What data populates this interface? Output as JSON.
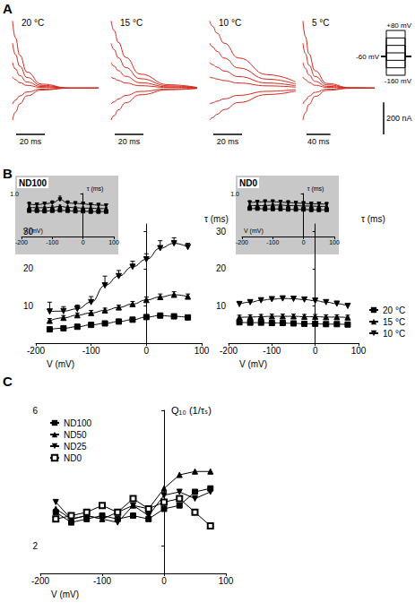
{
  "chart_data": [
    {
      "type": "line",
      "panel": "A",
      "title": "20 °C",
      "tick_labels": false,
      "color": "#d42a1e",
      "line_style": "smooth",
      "x": [
        0,
        2,
        5,
        10,
        20,
        40,
        60
      ],
      "xlim": [
        0,
        60
      ],
      "ylim": [
        -250,
        450
      ],
      "series": [
        {
          "values": [
            420,
            315,
            206,
            101,
            25,
            0,
            0
          ]
        },
        {
          "values": [
            280,
            210,
            137,
            67,
            17,
            0,
            0
          ]
        },
        {
          "values": [
            160,
            120,
            78,
            38,
            10,
            0,
            0
          ]
        },
        {
          "values": [
            70,
            53,
            34,
            17,
            4,
            0,
            0
          ]
        },
        {
          "values": [
            -100,
            -75,
            -49,
            -24,
            -6,
            0,
            0
          ]
        },
        {
          "values": [
            -200,
            -150,
            -98,
            -48,
            -12,
            0,
            0
          ]
        }
      ],
      "scale_bars": {
        "x": {
          "value": 20,
          "label": "20 ms"
        }
      }
    },
    {
      "type": "line",
      "panel": "A",
      "title": "15 °C",
      "tick_labels": false,
      "color": "#d42a1e",
      "line_style": "smooth",
      "x": [
        0,
        2,
        5,
        10,
        20,
        40,
        60
      ],
      "xlim": [
        0,
        60
      ],
      "ylim": [
        -250,
        450
      ],
      "series": [
        {
          "values": [
            420,
            361,
            286,
            193,
            88,
            21,
            4
          ]
        },
        {
          "values": [
            280,
            241,
            190,
            129,
            59,
            14,
            3
          ]
        },
        {
          "values": [
            160,
            138,
            109,
            74,
            34,
            8,
            2
          ]
        },
        {
          "values": [
            70,
            60,
            48,
            32,
            15,
            4,
            1
          ]
        },
        {
          "values": [
            -100,
            -86,
            -68,
            -46,
            -21,
            -5,
            -1
          ]
        },
        {
          "values": [
            -200,
            -172,
            -136,
            -92,
            -42,
            -10,
            -2
          ]
        }
      ],
      "scale_bars": {
        "x": {
          "value": 20,
          "label": "20 ms"
        }
      }
    },
    {
      "type": "line",
      "panel": "A",
      "title": "10 °C",
      "tick_labels": false,
      "color": "#d42a1e",
      "line_style": "smooth",
      "x": [
        0,
        2,
        5,
        10,
        20,
        40,
        60
      ],
      "xlim": [
        0,
        60
      ],
      "ylim": [
        -250,
        450
      ],
      "series": [
        {
          "values": [
            420,
            386,
            344,
            281,
            189,
            84,
            38
          ]
        },
        {
          "values": [
            280,
            258,
            230,
            188,
            126,
            56,
            25
          ]
        },
        {
          "values": [
            160,
            147,
            131,
            107,
            72,
            32,
            14
          ]
        },
        {
          "values": [
            70,
            64,
            57,
            47,
            32,
            14,
            6
          ]
        },
        {
          "values": [
            -100,
            -92,
            -82,
            -67,
            -45,
            -20,
            -9
          ]
        },
        {
          "values": [
            -200,
            -184,
            -164,
            -134,
            -90,
            -40,
            -18
          ]
        }
      ],
      "scale_bars": {
        "x": {
          "value": 20,
          "label": "20 ms"
        }
      }
    },
    {
      "type": "line",
      "panel": "A",
      "title": "5 °C",
      "tick_labels": false,
      "color": "#d42a1e",
      "line_style": "smooth",
      "x": [
        0,
        4,
        10,
        20,
        40,
        80,
        120
      ],
      "xlim": [
        0,
        120
      ],
      "ylim": [
        -250,
        450
      ],
      "series": [
        {
          "values": [
            420,
            323,
            214,
            109,
            29,
            2,
            0
          ]
        },
        {
          "values": [
            280,
            216,
            143,
            73,
            20,
            1,
            0
          ]
        },
        {
          "values": [
            160,
            123,
            82,
            42,
            11,
            1,
            0
          ]
        },
        {
          "values": [
            70,
            54,
            36,
            18,
            5,
            0,
            0
          ]
        },
        {
          "values": [
            -100,
            -77,
            -51,
            -26,
            -7,
            0,
            0
          ]
        },
        {
          "values": [
            -200,
            -154,
            -102,
            -52,
            -14,
            -1,
            0
          ]
        }
      ],
      "scale_bars": {
        "x": {
          "value": 40,
          "label": "40 ms"
        },
        "y": {
          "value": 200,
          "label": "200 nA"
        }
      }
    },
    {
      "type": "protocol",
      "panel": "A",
      "levels": [
        80,
        40,
        0,
        -40,
        -80,
        -120,
        -160
      ],
      "holding": -60,
      "yticks": [
        {
          "value": 80,
          "label": "+80 mV"
        },
        {
          "value": -60,
          "label": "-60 mV"
        },
        {
          "value": -160,
          "label": "-160 mV"
        }
      ]
    },
    {
      "type": "line",
      "panel": "B",
      "line_style": "smooth",
      "color": "#000000",
      "xlabel": "V (mV)",
      "ylabel": "τ (ms)",
      "x": [
        -175,
        -150,
        -125,
        -100,
        -75,
        -50,
        -25,
        0,
        25,
        50,
        75
      ],
      "xlim": [
        -200,
        100
      ],
      "xticks": [
        -200,
        -100,
        0,
        100
      ],
      "ylim": [
        0,
        32
      ],
      "yticks": [
        10,
        20,
        30
      ],
      "series": [
        {
          "name": "20 °C",
          "marker": "square",
          "values": [
            3.7,
            4.0,
            4.4,
            4.9,
            5.3,
            5.8,
            6.3,
            7.0,
            7.4,
            7.2,
            6.9
          ],
          "errors": [
            0.5,
            0.4,
            0.4,
            0.4,
            0.4,
            0.4,
            0.4,
            0.5,
            0.5,
            0.4,
            0.4
          ]
        },
        {
          "name": "15 °C",
          "marker": "triangle",
          "values": [
            6.0,
            6.8,
            7.5,
            8.1,
            8.8,
            9.6,
            10.5,
            11.6,
            12.4,
            13.0,
            12.5
          ],
          "errors": [
            0.6,
            0.6,
            0.6,
            0.7,
            0.6,
            0.6,
            0.7,
            0.8,
            0.8,
            0.8,
            0.7
          ]
        },
        {
          "name": "10 °C",
          "marker": "triangle-down",
          "values": [
            8.5,
            8.6,
            9.2,
            11.0,
            15.5,
            18.0,
            20.5,
            22.5,
            25.5,
            26.8,
            25.8
          ],
          "errors": [
            2.5,
            1.2,
            1.0,
            1.5,
            2.5,
            1.5,
            1.5,
            1.5,
            2.0,
            1.5,
            1.0
          ]
        }
      ]
    },
    {
      "type": "line",
      "panel": "B",
      "title": "ND100",
      "line_style": "smooth",
      "color": "#000000",
      "xlabel": "V (mV)",
      "ylabel": "τ (ms)",
      "x": [
        -175,
        -150,
        -125,
        -100,
        -75,
        -50,
        -25,
        0,
        25,
        50,
        75
      ],
      "xlim": [
        -200,
        100
      ],
      "xticks": [
        -200,
        -100,
        0,
        100
      ],
      "ylim": [
        0,
        1
      ],
      "yticks": [
        {
          "value": 1,
          "label": "1.0"
        }
      ],
      "series": [
        {
          "marker": "square",
          "values": [
            0.6,
            0.6,
            0.59,
            0.6,
            0.61,
            0.6,
            0.59,
            0.59,
            0.58,
            0.58,
            0.58
          ],
          "errors": [
            0.02,
            0.02,
            0.02,
            0.02,
            0.02,
            0.02,
            0.02,
            0.02,
            0.02,
            0.02,
            0.02
          ]
        },
        {
          "marker": "triangle",
          "values": [
            0.68,
            0.67,
            0.67,
            0.68,
            0.7,
            0.68,
            0.67,
            0.66,
            0.66,
            0.65,
            0.65
          ],
          "errors": [
            0.03,
            0.03,
            0.03,
            0.03,
            0.03,
            0.03,
            0.03,
            0.03,
            0.03,
            0.03,
            0.03
          ]
        },
        {
          "marker": "triangle-down",
          "values": [
            0.75,
            0.74,
            0.76,
            0.78,
            0.86,
            0.78,
            0.77,
            0.76,
            0.74,
            0.73,
            0.72
          ],
          "errors": [
            0.05,
            0.04,
            0.04,
            0.05,
            0.08,
            0.05,
            0.04,
            0.04,
            0.04,
            0.04,
            0.04
          ]
        }
      ]
    },
    {
      "type": "line",
      "panel": "B",
      "line_style": "smooth",
      "color": "#000000",
      "legend": "right",
      "xlabel": "V (mV)",
      "ylabel": "τ (ms)",
      "x": [
        -175,
        -150,
        -125,
        -100,
        -75,
        -50,
        -25,
        0,
        25,
        50,
        75
      ],
      "xlim": [
        -200,
        100
      ],
      "xticks": [
        -200,
        -100,
        0,
        100
      ],
      "ylim": [
        0,
        32
      ],
      "yticks": [
        10,
        20,
        30
      ],
      "series": [
        {
          "name": "20 °C",
          "marker": "square",
          "values": [
            5.6,
            5.5,
            5.5,
            5.4,
            5.4,
            5.3,
            5.2,
            5.2,
            5.1,
            5.1,
            5.0
          ],
          "errors": [
            0.4,
            0.4,
            0.4,
            0.4,
            0.4,
            0.4,
            0.4,
            0.4,
            0.4,
            0.4,
            0.4
          ]
        },
        {
          "name": "15 °C",
          "marker": "triangle",
          "values": [
            6.9,
            7.0,
            7.1,
            7.2,
            7.2,
            7.2,
            7.1,
            7.1,
            7.0,
            7.0,
            6.9
          ],
          "errors": [
            0.6,
            0.6,
            0.6,
            0.6,
            0.6,
            0.6,
            0.6,
            0.6,
            0.6,
            0.6,
            0.6
          ]
        },
        {
          "name": "10 °C",
          "marker": "triangle-down",
          "values": [
            10.5,
            11.0,
            11.5,
            11.8,
            12.0,
            11.9,
            11.7,
            11.4,
            11.0,
            10.6,
            10.0
          ],
          "errors": [
            0.5,
            0.5,
            0.5,
            0.5,
            0.5,
            0.5,
            0.5,
            0.5,
            0.5,
            0.5,
            0.5
          ]
        }
      ]
    },
    {
      "type": "line",
      "panel": "B",
      "title": "ND0",
      "line_style": "smooth",
      "color": "#000000",
      "xlabel": "V (mV)",
      "ylabel": "τ (ms)",
      "x": [
        -175,
        -150,
        -125,
        -100,
        -75,
        -50,
        -25,
        0,
        25,
        50,
        75
      ],
      "xlim": [
        -200,
        100
      ],
      "xticks": [
        -200,
        -100,
        0,
        100
      ],
      "ylim": [
        0,
        1
      ],
      "yticks": [
        {
          "value": 1,
          "label": "1.0"
        }
      ],
      "series": [
        {
          "marker": "square",
          "values": [
            0.65,
            0.65,
            0.64,
            0.64,
            0.64,
            0.63,
            0.63,
            0.63,
            0.62,
            0.62,
            0.62
          ],
          "errors": [
            0.02,
            0.02,
            0.02,
            0.02,
            0.02,
            0.02,
            0.02,
            0.02,
            0.02,
            0.02,
            0.02
          ]
        },
        {
          "marker": "triangle",
          "values": [
            0.72,
            0.72,
            0.72,
            0.73,
            0.73,
            0.72,
            0.72,
            0.71,
            0.71,
            0.7,
            0.7
          ],
          "errors": [
            0.03,
            0.03,
            0.03,
            0.03,
            0.03,
            0.03,
            0.03,
            0.03,
            0.03,
            0.03,
            0.03
          ]
        },
        {
          "marker": "triangle-down",
          "values": [
            0.79,
            0.8,
            0.81,
            0.81,
            0.8,
            0.79,
            0.78,
            0.77,
            0.76,
            0.76,
            0.75
          ],
          "errors": [
            0.04,
            0.04,
            0.04,
            0.04,
            0.04,
            0.04,
            0.04,
            0.04,
            0.04,
            0.04,
            0.04
          ]
        }
      ]
    },
    {
      "type": "line",
      "panel": "C",
      "line_style": "solid",
      "color": "#000000",
      "legend": "upper left",
      "xlabel": "V (mV)",
      "ylabel": "Q₁₀ (1/τₛ)",
      "x": [
        -175,
        -150,
        -125,
        -100,
        -75,
        -50,
        -25,
        0,
        25,
        50,
        75
      ],
      "xlim": [
        -200,
        100
      ],
      "xticks": [
        -200,
        -100,
        0,
        100
      ],
      "ylim": [
        1.2,
        6
      ],
      "yticks": [
        2,
        6
      ],
      "series": [
        {
          "name": "ND100",
          "marker": "square",
          "values": [
            3.0,
            2.7,
            2.8,
            2.9,
            2.8,
            2.9,
            2.8,
            3.1,
            3.2,
            3.6,
            3.7
          ]
        },
        {
          "name": "ND50",
          "marker": "triangle",
          "values": [
            3.1,
            2.8,
            2.9,
            2.8,
            3.0,
            3.2,
            3.1,
            3.7,
            4.1,
            4.2,
            4.2
          ]
        },
        {
          "name": "ND25",
          "marker": "triangle-down",
          "values": [
            3.3,
            2.8,
            2.9,
            2.8,
            2.7,
            3.2,
            2.9,
            3.5,
            3.6,
            3.4,
            3.6
          ]
        },
        {
          "name": "ND0",
          "marker": "open-square",
          "values": [
            2.8,
            2.9,
            3.0,
            3.2,
            3.0,
            3.4,
            3.1,
            3.3,
            3.4,
            3.0,
            2.6
          ]
        }
      ]
    }
  ]
}
